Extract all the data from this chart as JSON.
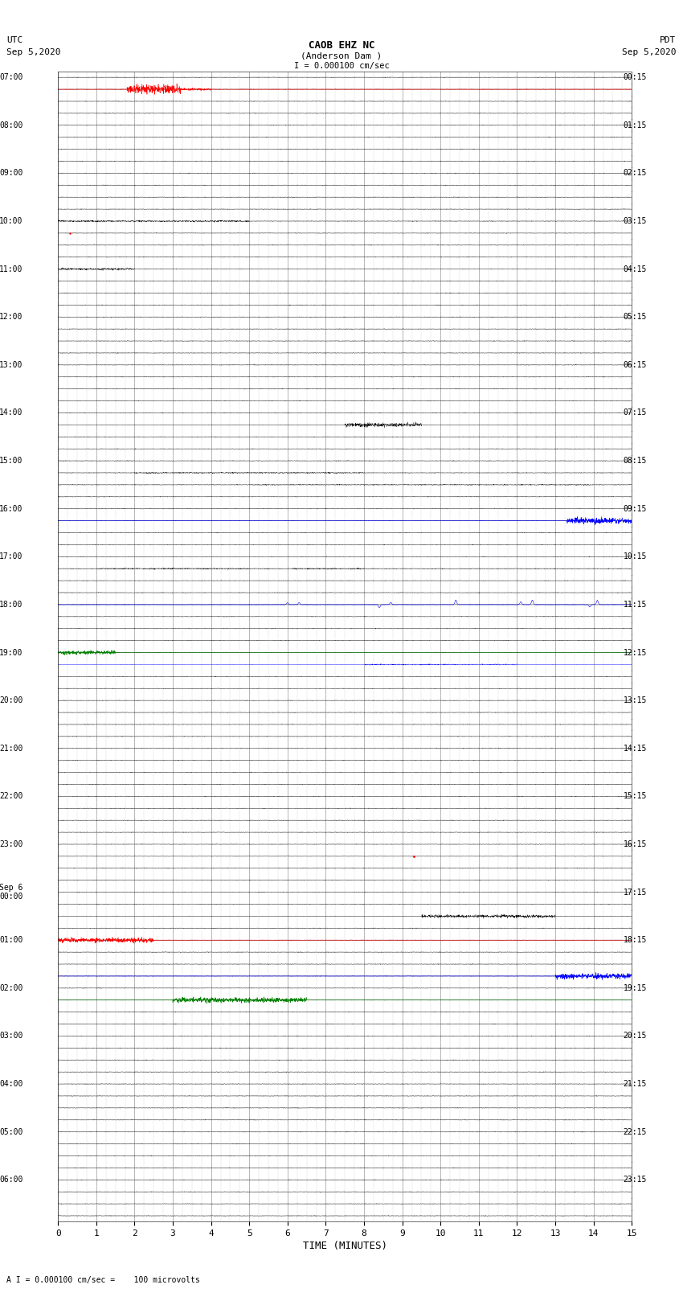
{
  "title_line1": "CAOB EHZ NC",
  "title_line2": "(Anderson Dam )",
  "scale_label": "I = 0.000100 cm/sec",
  "footer_label": "A I = 0.000100 cm/sec =    100 microvolts",
  "left_label_top": "UTC",
  "left_label_date": "Sep 5,2020",
  "right_label_top": "PDT",
  "right_label_date": "Sep 5,2020",
  "xlabel": "TIME (MINUTES)",
  "utc_labels": {
    "0": "07:00",
    "4": "08:00",
    "8": "09:00",
    "12": "10:00",
    "16": "11:00",
    "20": "12:00",
    "24": "13:00",
    "28": "14:00",
    "32": "15:00",
    "36": "16:00",
    "40": "17:00",
    "44": "18:00",
    "48": "19:00",
    "52": "20:00",
    "56": "21:00",
    "60": "22:00",
    "64": "23:00",
    "68": "Sep 6\n00:00",
    "72": "01:00",
    "76": "02:00",
    "80": "03:00",
    "84": "04:00",
    "88": "05:00",
    "92": "06:00"
  },
  "pdt_labels": {
    "0": "00:15",
    "4": "01:15",
    "8": "02:15",
    "12": "03:15",
    "16": "04:15",
    "20": "05:15",
    "24": "06:15",
    "28": "07:15",
    "32": "08:15",
    "36": "09:15",
    "40": "10:15",
    "44": "11:15",
    "48": "12:15",
    "52": "13:15",
    "56": "14:15",
    "60": "15:15",
    "64": "16:15",
    "68": "17:15",
    "72": "18:15",
    "76": "19:15",
    "80": "20:15",
    "84": "21:15",
    "88": "22:15",
    "92": "23:15"
  },
  "n_rows": 96,
  "x_min": 0,
  "x_max": 15,
  "x_ticks": [
    0,
    1,
    2,
    3,
    4,
    5,
    6,
    7,
    8,
    9,
    10,
    11,
    12,
    13,
    14,
    15
  ],
  "background_color": "#ffffff",
  "line_color": "#000000",
  "grid_major_color": "#999999",
  "grid_minor_color": "#cccccc"
}
